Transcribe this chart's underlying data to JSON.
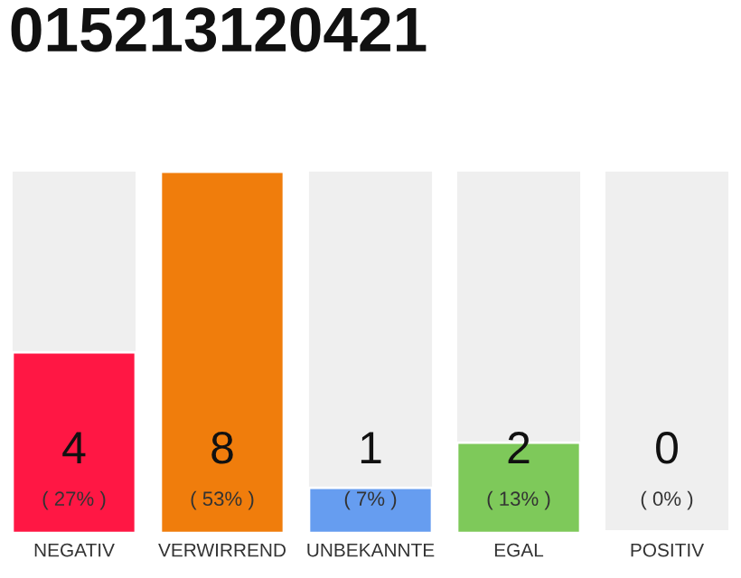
{
  "chart_data": {
    "type": "bar",
    "title": "015213120421",
    "categories": [
      "NEGATIV",
      "VERWIRREND",
      "UNBEKANNTE",
      "EGAL",
      "POSITIV"
    ],
    "values": [
      4,
      8,
      1,
      2,
      0
    ],
    "colors": [
      "#ff1744",
      "#f07d0c",
      "#669df0",
      "#7ec95a",
      "#2eaa4a"
    ],
    "ylim": [
      0,
      8
    ],
    "tick_labels": "x",
    "data_labels": true,
    "grid": false,
    "annotations": [
      "( 27% )",
      "( 53% )",
      "( 7% )",
      "( 13% )",
      "( 0% )"
    ]
  }
}
